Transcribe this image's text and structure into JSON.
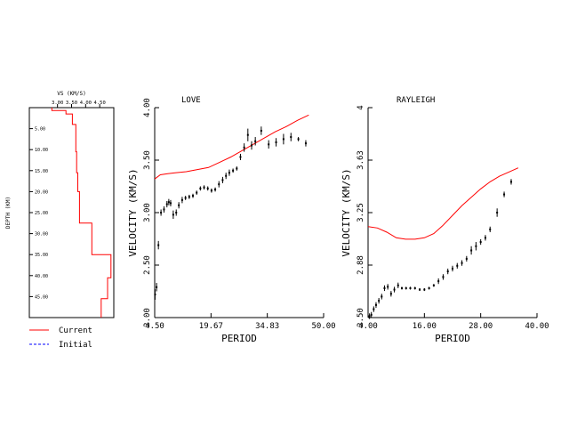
{
  "colors": {
    "current": "#ff0000",
    "initial": "#0000ff",
    "axes": "#000000",
    "data": "#000000"
  },
  "legend": [
    {
      "label": "Current",
      "style": "solid",
      "color": "#ff0000"
    },
    {
      "label": "Initial",
      "style": "dashed",
      "color": "#0000ff"
    }
  ],
  "chart_data": [
    {
      "type": "line",
      "title": "",
      "xlabel": "VS (KM/S)",
      "ylabel": "DEPTH (KM)",
      "xlim": [
        2.0,
        5.0
      ],
      "ylim": [
        0,
        50
      ],
      "x_ticks": [
        "3.00",
        "3.50",
        "4.00",
        "4.50"
      ],
      "y_ticks": [
        "5.00",
        "10.00",
        "15.00",
        "20.00",
        "25.00",
        "30.00",
        "35.00",
        "40.00",
        "45.00"
      ],
      "y_reversed": true,
      "grid": false,
      "series": [
        {
          "name": "Current",
          "step": true,
          "vs": [
            2.8,
            3.3,
            3.53,
            3.65,
            3.68,
            3.72,
            3.78,
            4.22,
            4.9,
            4.78,
            4.55,
            4.66
          ],
          "depth": [
            0,
            0.7,
            1.5,
            4.0,
            10.5,
            15.5,
            20.0,
            27.5,
            35.0,
            40.5,
            45.5,
            50.0
          ]
        }
      ]
    },
    {
      "type": "scatter",
      "title": "LOVE",
      "xlabel": "PERIOD",
      "ylabel": "VELOCITY (KM/S)",
      "xlim": [
        4.5,
        50.0
      ],
      "ylim": [
        2.0,
        4.0
      ],
      "x_ticks": [
        "4.50",
        "19.67",
        "34.83",
        "50.00"
      ],
      "y_ticks": [
        "2.00",
        "2.50",
        "3.00",
        "3.50",
        "4.00"
      ],
      "grid": false,
      "observed": {
        "x": [
          4.6,
          5.0,
          5.5,
          6.2,
          7.0,
          7.8,
          8.3,
          8.8,
          9.5,
          10.3,
          11.0,
          11.9,
          12.8,
          13.8,
          14.8,
          15.8,
          16.8,
          17.8,
          18.8,
          19.8,
          20.8,
          21.8,
          22.8,
          23.7,
          24.6,
          25.6,
          26.6,
          27.6,
          28.6,
          29.6,
          30.6,
          31.6,
          33.2,
          35.2,
          37.2,
          39.2,
          41.2,
          43.2,
          45.2
        ],
        "y": [
          2.22,
          2.29,
          2.69,
          3.0,
          3.03,
          3.08,
          3.1,
          3.09,
          2.98,
          3.0,
          3.07,
          3.12,
          3.14,
          3.15,
          3.16,
          3.19,
          3.23,
          3.24,
          3.23,
          3.21,
          3.22,
          3.27,
          3.31,
          3.35,
          3.38,
          3.4,
          3.42,
          3.53,
          3.62,
          3.74,
          3.64,
          3.68,
          3.78,
          3.65,
          3.67,
          3.7,
          3.72,
          3.7,
          3.66
        ],
        "err": [
          0.05,
          0.04,
          0.04,
          0.03,
          0.03,
          0.03,
          0.03,
          0.03,
          0.04,
          0.03,
          0.03,
          0.03,
          0.02,
          0.02,
          0.02,
          0.02,
          0.02,
          0.02,
          0.02,
          0.02,
          0.02,
          0.03,
          0.03,
          0.03,
          0.03,
          0.02,
          0.02,
          0.03,
          0.04,
          0.06,
          0.04,
          0.04,
          0.04,
          0.04,
          0.04,
          0.05,
          0.04,
          0.02,
          0.03
        ]
      },
      "series": [
        {
          "name": "Current",
          "x": [
            4.5,
            6,
            8,
            10,
            13,
            16,
            19,
            22,
            25,
            28,
            31,
            34,
            37,
            40,
            43,
            46
          ],
          "y": [
            3.32,
            3.36,
            3.37,
            3.38,
            3.39,
            3.41,
            3.43,
            3.48,
            3.53,
            3.59,
            3.65,
            3.71,
            3.77,
            3.82,
            3.88,
            3.93
          ]
        }
      ]
    },
    {
      "type": "scatter",
      "title": "RAYLEIGH",
      "xlabel": "PERIOD",
      "ylabel": "VELOCITY (KM/S)",
      "xlim": [
        4.0,
        40.0
      ],
      "ylim": [
        2.5,
        4.0
      ],
      "x_ticks": [
        "4.00",
        "16.00",
        "28.00",
        "40.00"
      ],
      "y_ticks": [
        "2.50",
        "2.88",
        "3.25",
        "3.63",
        "4"
      ],
      "grid": false,
      "observed": {
        "x": [
          4.3,
          4.7,
          5.2,
          5.7,
          6.3,
          6.9,
          7.5,
          8.2,
          8.9,
          9.6,
          10.4,
          11.2,
          12.1,
          13.0,
          14.0,
          15.0,
          16.0,
          17.0,
          18.0,
          19.0,
          20.0,
          21.0,
          22.0,
          23.0,
          24.0,
          25.0,
          26.0,
          27.0,
          28.0,
          29.0,
          30.0,
          31.5,
          33.0,
          34.5
        ],
        "y": [
          2.51,
          2.52,
          2.56,
          2.59,
          2.62,
          2.65,
          2.71,
          2.72,
          2.67,
          2.7,
          2.73,
          2.71,
          2.71,
          2.71,
          2.71,
          2.7,
          2.7,
          2.71,
          2.73,
          2.76,
          2.79,
          2.83,
          2.85,
          2.87,
          2.89,
          2.92,
          2.98,
          3.01,
          3.04,
          3.07,
          3.13,
          3.25,
          3.38,
          3.47
        ],
        "err": [
          0.02,
          0.02,
          0.02,
          0.02,
          0.02,
          0.02,
          0.02,
          0.02,
          0.02,
          0.02,
          0.02,
          0.01,
          0.01,
          0.01,
          0.01,
          0.01,
          0.01,
          0.01,
          0.01,
          0.02,
          0.02,
          0.02,
          0.02,
          0.02,
          0.02,
          0.02,
          0.03,
          0.03,
          0.02,
          0.02,
          0.02,
          0.03,
          0.02,
          0.02
        ]
      },
      "series": [
        {
          "name": "Current",
          "x": [
            4,
            6,
            8,
            10,
            12,
            14,
            16,
            18,
            20,
            22,
            24,
            26,
            28,
            30,
            32,
            34,
            36
          ],
          "y": [
            3.15,
            3.14,
            3.11,
            3.07,
            3.06,
            3.06,
            3.07,
            3.1,
            3.16,
            3.23,
            3.3,
            3.36,
            3.42,
            3.47,
            3.51,
            3.54,
            3.57
          ]
        }
      ]
    }
  ]
}
